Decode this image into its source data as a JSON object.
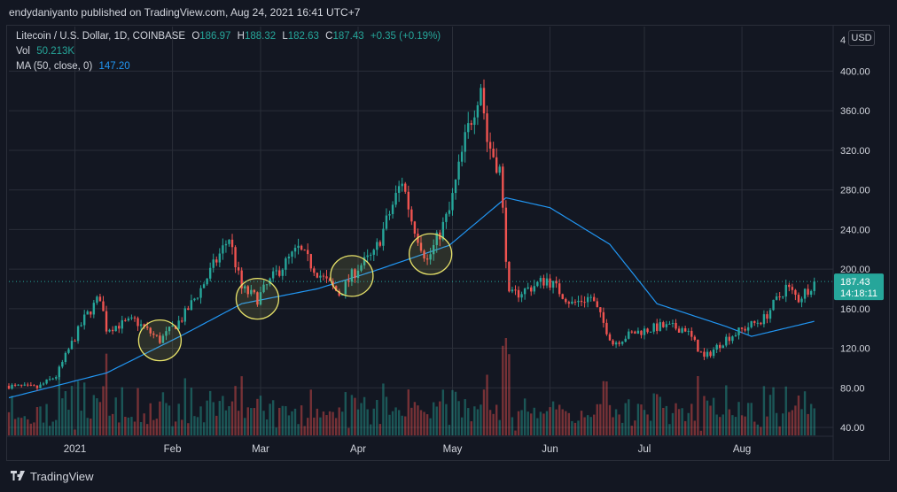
{
  "header": {
    "published_text": "endydaniyanto published on TradingView.com, Aug 24, 2021 16:41 UTC+7"
  },
  "legend": {
    "symbol": "Litecoin / U.S. Dollar, 1D, COINBASE",
    "o_label": "O",
    "o_value": "186.97",
    "h_label": "H",
    "h_value": "188.32",
    "l_label": "L",
    "l_value": "182.63",
    "c_label": "C",
    "c_value": "187.43",
    "change": "+0.35 (+0.19%)",
    "vol_label": "Vol",
    "vol_value": "50.213K",
    "ma_label": "MA (50, close, 0)",
    "ma_value": "147.20"
  },
  "price_scale": {
    "currency_button": "USD",
    "clipped_top_tick": "4"
  },
  "price_label": {
    "price": "187.43",
    "countdown": "14:18:11"
  },
  "footer": {
    "brand": "TradingView"
  },
  "colors": {
    "up": "#26a69a",
    "down": "#ef5350",
    "ma": "#2196f3",
    "highlight": "#e8e36a",
    "background": "#131722"
  },
  "chart_data": {
    "type": "candlestick",
    "title": "Litecoin / U.S. Dollar, 1D, COINBASE",
    "y_ticks": [
      40,
      80,
      120,
      160,
      200,
      240,
      280,
      320,
      360,
      400
    ],
    "y_tick_labels": [
      "40.00",
      "80.00",
      "120.00",
      "160.00",
      "200.00",
      "240.00",
      "280.00",
      "320.00",
      "360.00",
      "400.00"
    ],
    "ylim": [
      32,
      445
    ],
    "x_ticks": [
      {
        "label": "2021",
        "date": "2021-01-01"
      },
      {
        "label": "Feb",
        "date": "2021-02-01"
      },
      {
        "label": "Mar",
        "date": "2021-03-01"
      },
      {
        "label": "Apr",
        "date": "2021-04-01"
      },
      {
        "label": "May",
        "date": "2021-05-01"
      },
      {
        "label": "Jun",
        "date": "2021-06-01"
      },
      {
        "label": "Jul",
        "date": "2021-07-01"
      },
      {
        "label": "Aug",
        "date": "2021-08-01"
      }
    ],
    "xlim": [
      "2020-12-11",
      "2021-08-30"
    ],
    "last_price": 187.43,
    "close_anchors": [
      [
        "2020-12-11",
        82
      ],
      [
        "2020-12-20",
        80
      ],
      [
        "2020-12-26",
        92
      ],
      [
        "2020-12-31",
        125
      ],
      [
        "2021-01-04",
        150
      ],
      [
        "2021-01-09",
        172
      ],
      [
        "2021-01-11",
        140
      ],
      [
        "2021-01-20",
        148
      ],
      [
        "2021-01-28",
        128
      ],
      [
        "2021-02-04",
        150
      ],
      [
        "2021-02-10",
        180
      ],
      [
        "2021-02-19",
        232
      ],
      [
        "2021-02-23",
        180
      ],
      [
        "2021-02-28",
        170
      ],
      [
        "2021-03-06",
        196
      ],
      [
        "2021-03-13",
        220
      ],
      [
        "2021-03-21",
        190
      ],
      [
        "2021-03-26",
        175
      ],
      [
        "2021-04-01",
        202
      ],
      [
        "2021-04-06",
        214
      ],
      [
        "2021-04-15",
        290
      ],
      [
        "2021-04-18",
        250
      ],
      [
        "2021-04-23",
        208
      ],
      [
        "2021-04-30",
        258
      ],
      [
        "2021-05-05",
        330
      ],
      [
        "2021-05-10",
        388
      ],
      [
        "2021-05-12",
        330
      ],
      [
        "2021-05-16",
        300
      ],
      [
        "2021-05-19",
        172
      ],
      [
        "2021-05-25",
        180
      ],
      [
        "2021-05-31",
        190
      ],
      [
        "2021-06-08",
        165
      ],
      [
        "2021-06-14",
        172
      ],
      [
        "2021-06-21",
        125
      ],
      [
        "2021-06-27",
        135
      ],
      [
        "2021-07-06",
        142
      ],
      [
        "2021-07-14",
        140
      ],
      [
        "2021-07-20",
        110
      ],
      [
        "2021-07-27",
        130
      ],
      [
        "2021-08-03",
        142
      ],
      [
        "2021-08-08",
        150
      ],
      [
        "2021-08-15",
        182
      ],
      [
        "2021-08-19",
        170
      ],
      [
        "2021-08-24",
        187.43
      ]
    ],
    "ma_anchors": [
      [
        "2020-12-11",
        70
      ],
      [
        "2021-01-11",
        95
      ],
      [
        "2021-02-04",
        133
      ],
      [
        "2021-02-23",
        165
      ],
      [
        "2021-03-19",
        180
      ],
      [
        "2021-04-06",
        198
      ],
      [
        "2021-04-30",
        224
      ],
      [
        "2021-05-18",
        272
      ],
      [
        "2021-06-01",
        262
      ],
      [
        "2021-06-20",
        225
      ],
      [
        "2021-07-05",
        165
      ],
      [
        "2021-07-27",
        142
      ],
      [
        "2021-08-04",
        132
      ],
      [
        "2021-08-24",
        147.2
      ]
    ],
    "highlighted_dates": [
      "2021-01-28",
      "2021-02-28",
      "2021-03-30",
      "2021-04-24"
    ]
  }
}
